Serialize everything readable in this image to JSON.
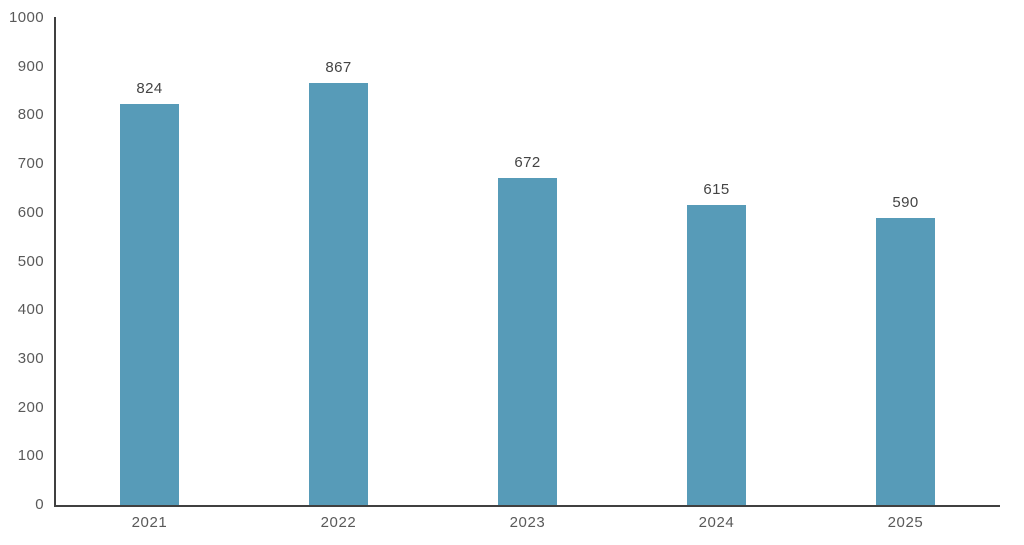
{
  "chart_data": {
    "type": "bar",
    "title": "",
    "xlabel": "",
    "ylabel": "",
    "categories": [
      "2021",
      "2022",
      "2023",
      "2024",
      "2025"
    ],
    "values": [
      824,
      867,
      672,
      615,
      590
    ],
    "value_labels": [
      "824",
      "867",
      "672",
      "615",
      "590"
    ],
    "ylim": [
      0,
      1000
    ],
    "yticks": [
      0,
      100,
      200,
      300,
      400,
      500,
      600,
      700,
      800,
      900,
      1000
    ],
    "grid": false,
    "legend": null,
    "colors": {
      "bar_fill": "#579BB8",
      "axis_line": "#404040",
      "tick_label_text": "#595959",
      "value_label_text": "#444444"
    }
  }
}
